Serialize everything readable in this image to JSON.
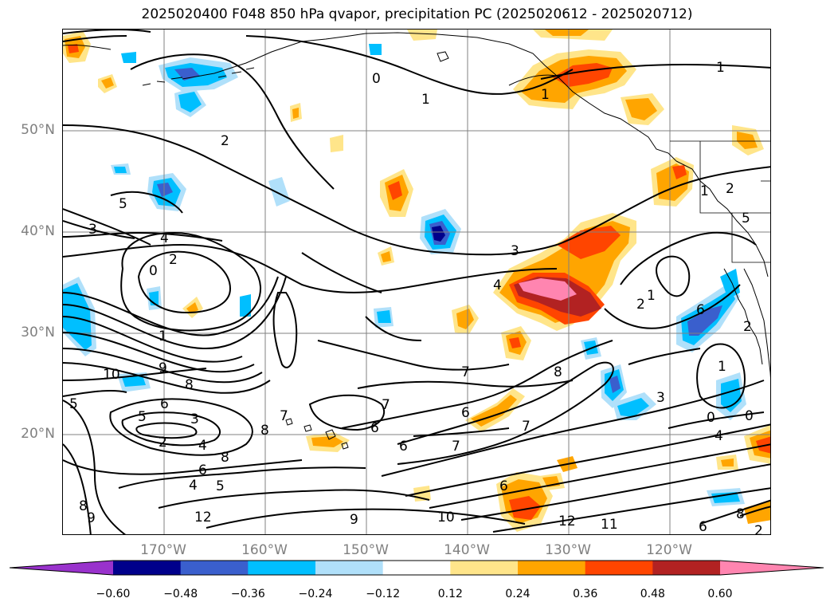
{
  "title": "2025020400 F048 850 hPa qvapor, precipitation PC (2025020612 - 2025020712)",
  "axes": {
    "lat_labels": [
      "50°N",
      "40°N",
      "30°N",
      "20°N"
    ],
    "lon_labels": [
      "170°W",
      "160°W",
      "150°W",
      "140°W",
      "130°W",
      "120°W"
    ],
    "grid_color": "#808080"
  },
  "colorbar": {
    "levels": [
      "−0.60",
      "−0.48",
      "−0.36",
      "−0.24",
      "−0.12",
      "0.12",
      "0.24",
      "0.36",
      "0.48",
      "0.60"
    ],
    "colors": [
      "#9932cc",
      "#00008b",
      "#3a5fcd",
      "#00bfff",
      "#b0e0fa",
      "#ffffff",
      "#ffe58a",
      "#ffa500",
      "#ff4500",
      "#b22222",
      "#ff85b0"
    ]
  },
  "contour_labels": [
    "1",
    "1",
    "0",
    "2",
    "5",
    "3",
    "4",
    "2",
    "0",
    "1",
    "10",
    "9",
    "8",
    "6",
    "5",
    "3",
    "2",
    "4",
    "6",
    "8",
    "5",
    "4",
    "12",
    "8",
    "9",
    "7",
    "7",
    "6",
    "8",
    "6",
    "5",
    "7",
    "3",
    "4",
    "6",
    "7",
    "8",
    "7",
    "1",
    "6",
    "10",
    "12",
    "11",
    "9",
    "3",
    "2",
    "1",
    "2",
    "5",
    "6",
    "2",
    "0",
    "1",
    "0",
    "4",
    "8",
    "6",
    "2",
    "1"
  ]
}
